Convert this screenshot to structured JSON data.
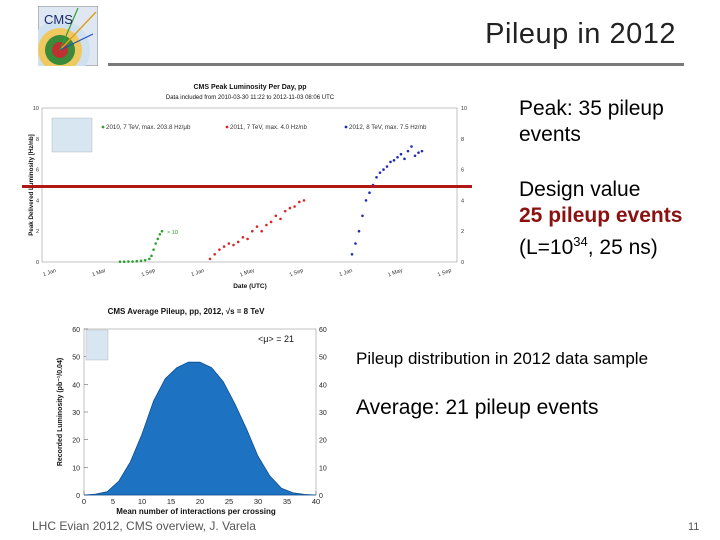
{
  "slide": {
    "title": "Pileup in 2012",
    "footer": "LHC Evian 2012, CMS overview, J. Varela",
    "page_number": "11"
  },
  "bullets": {
    "peak": "Peak: 35 pileup events",
    "design_line1": "Design value",
    "design_line2": "25 pileup events",
    "design_line3_prefix": "(L=10",
    "design_line3_sup": "34",
    "design_line3_suffix": ", 25 ns)",
    "distribution": "Pileup distribution in 2012 data sample",
    "average": "Average: 21 pileup events"
  },
  "logo": {
    "text": "CMS"
  },
  "colors": {
    "design_line": "#b01818",
    "bold_text": "#8b1010",
    "fill_2012": "#1e72c2",
    "series_2010": "#2ca02c",
    "series_2011": "#d62728",
    "series_2012": "#1f2bb8"
  },
  "chart_data": [
    {
      "type": "scatter",
      "title": "CMS Peak Luminosity Per Day, pp",
      "subtitle": "Data included from 2010-03-30 11:22 to 2012-11-03 08:06 UTC",
      "xlabel": "Date (UTC)",
      "ylabel": "Peak Delivered Luminosity [Hz/nb]",
      "ylim": [
        0,
        10
      ],
      "yticks": [
        "0",
        "2",
        "4",
        "6",
        "8",
        "10"
      ],
      "right_yticks": [
        "0",
        "2",
        "4",
        "6",
        "8",
        "10"
      ],
      "x_ticks": [
        "1 Jan",
        "1 Mar",
        "1 Sep",
        "1 Jan",
        "1 May",
        "1 Sep",
        "1 Jan",
        "1 May",
        "1 Sep"
      ],
      "annotation": "× 10",
      "legend": [
        {
          "name": "2010, 7 TeV, max. 203.8 Hz/μb"
        },
        {
          "name": "2011, 7 TeV, max. 4.0 Hz/nb"
        },
        {
          "name": "2012, 8 TeV, max. 7.5 Hz/nb"
        }
      ],
      "series": [
        {
          "name": "2010",
          "x": [
            0.0,
            0.1,
            0.2,
            0.3,
            0.4,
            0.5,
            0.6,
            0.7,
            0.75,
            0.8,
            0.85,
            0.9,
            0.95,
            1.0
          ],
          "y": [
            0.02,
            0.02,
            0.03,
            0.03,
            0.05,
            0.08,
            0.12,
            0.2,
            0.4,
            0.8,
            1.2,
            1.5,
            1.8,
            2.0
          ]
        },
        {
          "name": "2011",
          "x": [
            0.0,
            0.05,
            0.1,
            0.15,
            0.2,
            0.25,
            0.3,
            0.35,
            0.4,
            0.45,
            0.5,
            0.55,
            0.6,
            0.65,
            0.7,
            0.75,
            0.8,
            0.85,
            0.9,
            0.95,
            1.0
          ],
          "y": [
            0.2,
            0.5,
            0.8,
            1.0,
            1.2,
            1.1,
            1.3,
            1.6,
            1.5,
            2.0,
            2.3,
            2.0,
            2.4,
            2.6,
            3.0,
            2.8,
            3.3,
            3.5,
            3.6,
            3.9,
            4.0
          ]
        },
        {
          "name": "2012",
          "x": [
            0.0,
            0.05,
            0.1,
            0.15,
            0.2,
            0.25,
            0.3,
            0.35,
            0.4,
            0.45,
            0.5,
            0.55,
            0.6,
            0.65,
            0.7,
            0.75,
            0.8,
            0.85,
            0.9,
            0.95,
            1.0
          ],
          "y": [
            0.5,
            1.2,
            2.0,
            3.0,
            4.0,
            4.5,
            5.0,
            5.5,
            5.8,
            6.0,
            6.2,
            6.5,
            6.6,
            6.8,
            7.0,
            6.7,
            7.2,
            7.5,
            6.9,
            7.1,
            7.2
          ]
        }
      ],
      "reference_line": {
        "label": "Design value",
        "y": 5.0
      }
    },
    {
      "type": "area",
      "title": "CMS Average Pileup, pp, 2012, √s = 8 TeV",
      "xlabel": "Mean number of interactions per crossing",
      "ylabel": "Recorded Luminosity (pb⁻¹/0.04)",
      "annotation": "<μ> = 21",
      "xlim": [
        0,
        40
      ],
      "ylim": [
        0,
        60
      ],
      "xticks": [
        "0",
        "5",
        "10",
        "15",
        "20",
        "25",
        "30",
        "35",
        "40"
      ],
      "yticks": [
        "0",
        "10",
        "20",
        "30",
        "40",
        "50",
        "60"
      ],
      "x": [
        0,
        2,
        4,
        6,
        8,
        10,
        12,
        14,
        16,
        18,
        20,
        22,
        24,
        26,
        28,
        30,
        32,
        34,
        36,
        38,
        40
      ],
      "y": [
        0,
        0.3,
        1.2,
        5,
        12,
        22,
        34,
        42,
        46,
        48,
        48,
        46,
        41,
        33,
        24,
        14,
        7,
        2.5,
        0.8,
        0.2,
        0
      ]
    }
  ]
}
